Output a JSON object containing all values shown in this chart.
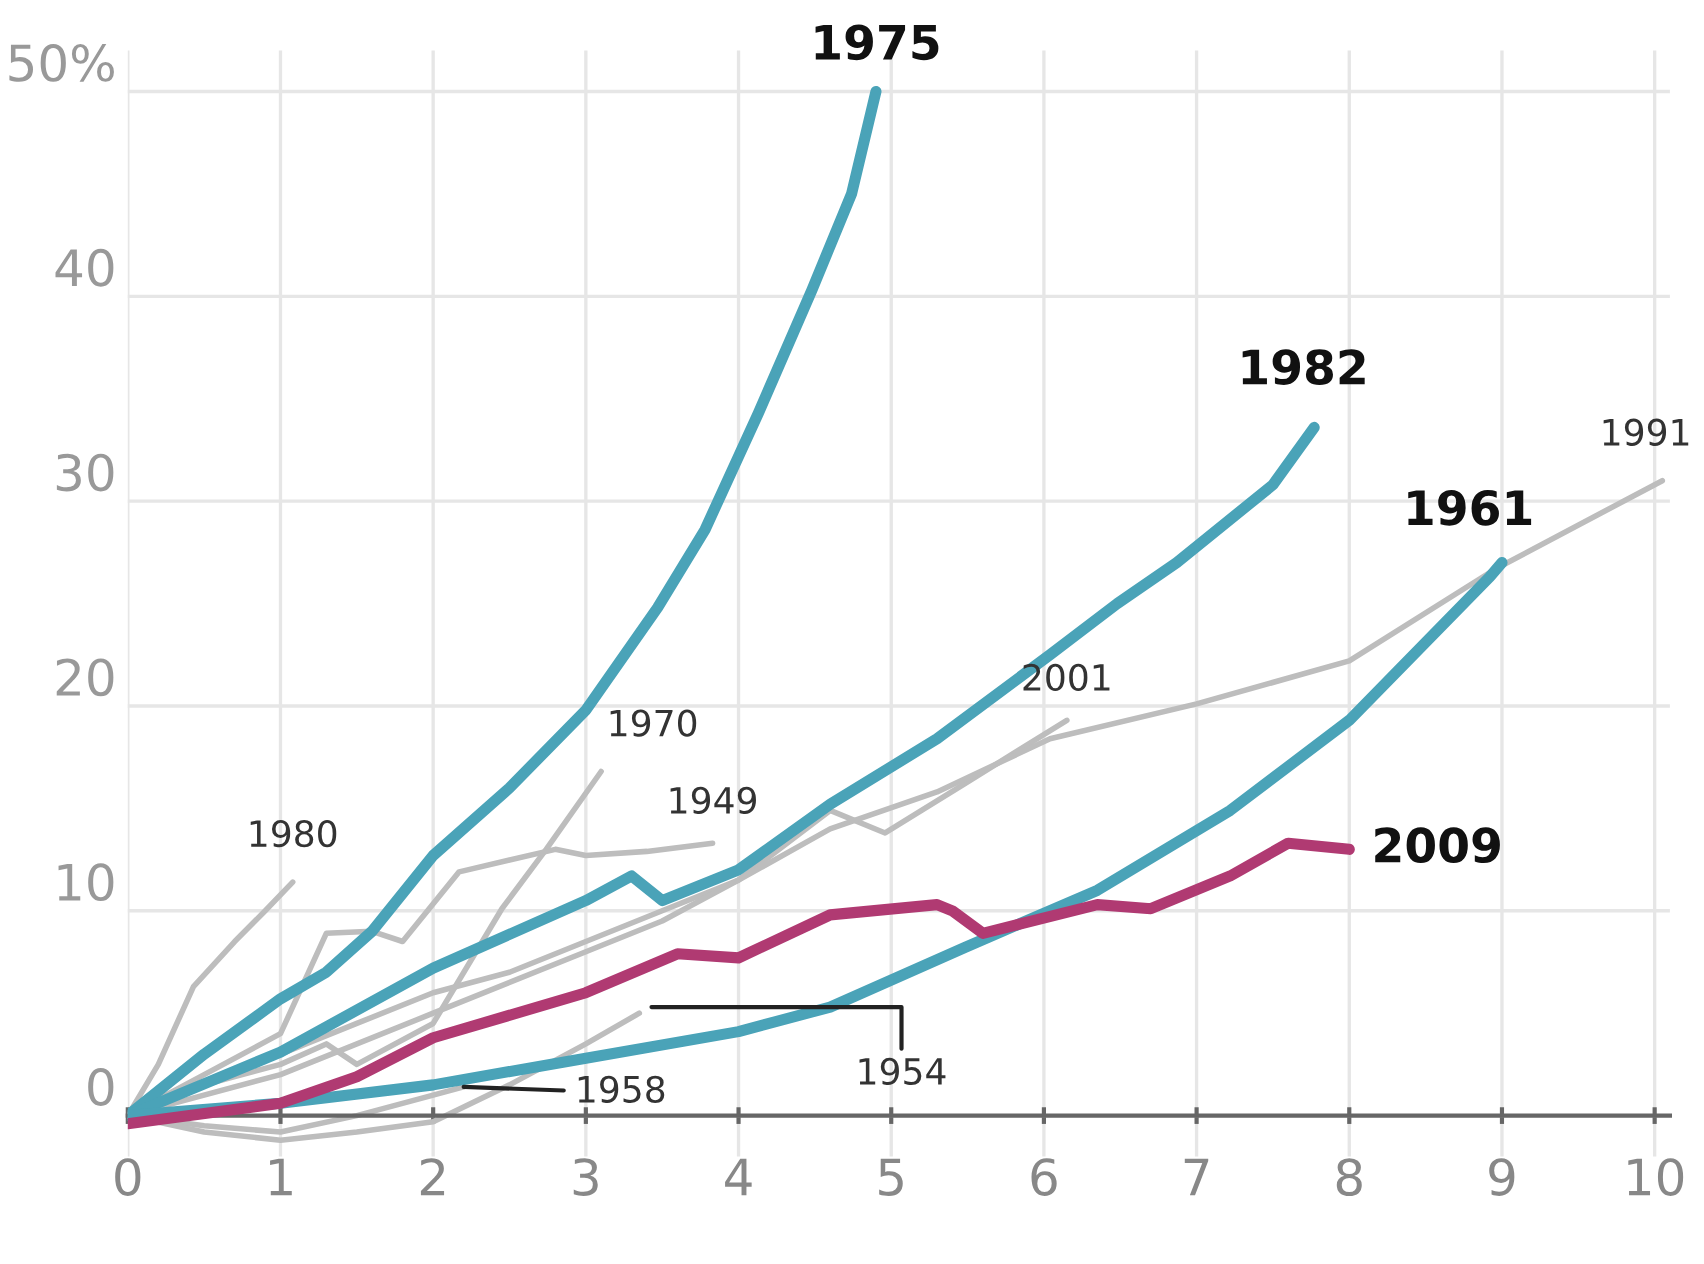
{
  "chart_data": {
    "type": "line",
    "xlim": [
      0,
      10.1
    ],
    "xticks": [
      0,
      1,
      2,
      3,
      4,
      5,
      6,
      7,
      8,
      9,
      10
    ],
    "ylim": [
      -2,
      52
    ],
    "yticks": [
      0,
      10,
      20,
      30,
      40,
      {
        "value": 50,
        "label": "50%"
      }
    ],
    "grid": true,
    "legend": false,
    "marker": "none",
    "line_style": "solid",
    "series": [
      {
        "name": "1980",
        "color": "#bdbdbd",
        "x": [
          0,
          0.2,
          0.43,
          0.7,
          0.9,
          1.08
        ],
        "values": [
          0,
          2.5,
          6.3,
          8.5,
          10,
          11.4
        ]
      },
      {
        "name": "1970",
        "color": "#bdbdbd",
        "x": [
          0,
          0.5,
          1,
          1.3,
          1.5,
          2,
          2.45,
          2.74,
          3.1
        ],
        "values": [
          0,
          1.5,
          2.5,
          3.5,
          2.5,
          4.5,
          10.1,
          13,
          16.8
        ]
      },
      {
        "name": "1949",
        "color": "#bdbdbd",
        "x": [
          0,
          0.5,
          1,
          1.3,
          1.6,
          1.8,
          2.17,
          2.8,
          3.0,
          3.4,
          3.83
        ],
        "values": [
          0,
          2,
          4,
          8.9,
          9,
          8.5,
          11.9,
          13,
          12.7,
          12.9,
          13.3
        ]
      },
      {
        "name": "2001",
        "color": "#bdbdbd",
        "x": [
          0,
          0.5,
          1,
          1.5,
          2,
          2.5,
          3,
          3.5,
          4,
          4.6,
          4.96,
          5.48,
          6.15
        ],
        "values": [
          0,
          1.5,
          3,
          4.5,
          6,
          7,
          8.5,
          10,
          11.5,
          14.9,
          13.8,
          16.2,
          19.3
        ]
      },
      {
        "name": "1991",
        "color": "#bdbdbd",
        "x": [
          0,
          1,
          2,
          3,
          3.5,
          4,
          4.6,
          5.3,
          6.04,
          7,
          8,
          8.96,
          10.05
        ],
        "values": [
          0,
          2,
          5,
          8,
          9.5,
          11.5,
          14,
          15.8,
          18.4,
          20.1,
          22.2,
          26.7,
          31
        ]
      },
      {
        "name": "1958",
        "color": "#bdbdbd",
        "x": [
          0,
          0.5,
          1,
          1.5,
          2,
          2.2
        ],
        "values": [
          0,
          -0.5,
          -0.8,
          0,
          1,
          1.4
        ]
      },
      {
        "name": "1954",
        "color": "#bdbdbd",
        "x": [
          0,
          0.5,
          1,
          1.5,
          2,
          2.5,
          3,
          3.35
        ],
        "values": [
          0,
          -0.8,
          -1.2,
          -0.8,
          -0.3,
          1.5,
          3.5,
          5
        ]
      },
      {
        "name": "1975",
        "color": "#4aa3b8",
        "x": [
          0,
          0.5,
          1,
          1.3,
          1.6,
          2,
          2.5,
          3,
          3.47,
          3.78,
          4.13,
          4.48,
          4.74,
          4.9
        ],
        "values": [
          0,
          3,
          5.7,
          7,
          9,
          12.7,
          16,
          19.8,
          24.8,
          28.6,
          34.3,
          40.3,
          45,
          50
        ]
      },
      {
        "name": "1982",
        "color": "#4aa3b8",
        "x": [
          0,
          1,
          2,
          3,
          3.3,
          3.5,
          4,
          4.6,
          5.3,
          6.04,
          6.48,
          6.87,
          7.5,
          7.77
        ],
        "values": [
          0,
          3.1,
          7.2,
          10.5,
          11.7,
          10.5,
          12,
          15.2,
          18.4,
          22.5,
          25,
          27,
          30.8,
          33.6
        ]
      },
      {
        "name": "1961",
        "color": "#4aa3b8",
        "x": [
          0,
          1,
          2,
          3,
          4,
          4.6,
          5.48,
          6.35,
          7.22,
          8.0,
          8.92,
          9.0
        ],
        "values": [
          0,
          0.6,
          1.5,
          2.8,
          4.1,
          5.3,
          8.2,
          11,
          14.9,
          19.3,
          26.3,
          27
        ]
      },
      {
        "name": "2009",
        "color": "#b03a72",
        "x": [
          0,
          1,
          1.5,
          2,
          3,
          3.6,
          4,
          4.6,
          5.3,
          5.4,
          5.6,
          6.35,
          6.7,
          7.22,
          7.6,
          8.0
        ],
        "values": [
          -0.4,
          0.6,
          1.9,
          3.8,
          6,
          7.9,
          7.7,
          9.8,
          10.3,
          10,
          8.9,
          10.3,
          10.1,
          11.7,
          13.3,
          13
        ]
      }
    ]
  }
}
